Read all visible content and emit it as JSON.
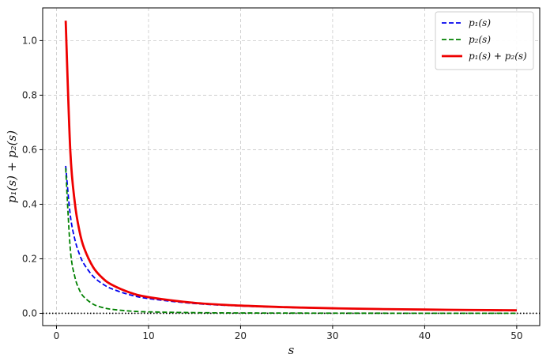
{
  "chart_data": {
    "type": "line",
    "title": "",
    "xlabel": "s",
    "ylabel": "p₁(s) + p₂(s)",
    "xlim": [
      -1.5,
      52.5
    ],
    "ylim": [
      -0.045,
      1.12
    ],
    "xticks": [
      0,
      10,
      20,
      30,
      40,
      50
    ],
    "yticks": [
      0.0,
      0.2,
      0.4,
      0.6,
      0.8,
      1.0
    ],
    "xtick_labels": [
      "0",
      "10",
      "20",
      "30",
      "40",
      "50"
    ],
    "ytick_labels": [
      "0.0",
      "0.2",
      "0.4",
      "0.6",
      "0.8",
      "1.0"
    ],
    "grid": true,
    "legend_position": "top-right",
    "reference_line": {
      "y": 0,
      "style": "dotted",
      "color": "#000000"
    },
    "series": [
      {
        "name": "p₁(s)",
        "color": "#0000ee",
        "style": "dashed",
        "x": [
          1,
          1.5,
          2,
          2.5,
          3,
          4,
          5,
          6,
          8,
          10,
          15,
          20,
          25,
          30,
          35,
          40,
          45,
          50
        ],
        "values": [
          0.5405,
          0.3604,
          0.2703,
          0.2162,
          0.1802,
          0.1351,
          0.1081,
          0.0901,
          0.0676,
          0.0541,
          0.036,
          0.027,
          0.0216,
          0.018,
          0.0154,
          0.0135,
          0.012,
          0.0108
        ]
      },
      {
        "name": "p₂(s)",
        "color": "#008000",
        "style": "dashed",
        "x": [
          1,
          1.5,
          2,
          2.5,
          3,
          4,
          5,
          6,
          8,
          10,
          15,
          20,
          25,
          30,
          35,
          40,
          45,
          50
        ],
        "values": [
          0.5325,
          0.2367,
          0.1331,
          0.0852,
          0.0592,
          0.0333,
          0.0213,
          0.0148,
          0.0083,
          0.0053,
          0.0024,
          0.0013,
          0.0009,
          0.0006,
          0.0004,
          0.0003,
          0.0003,
          0.0002
        ]
      },
      {
        "name": "p₁(s) + p₂(s)",
        "color": "#ee0000",
        "style": "solid",
        "x": [
          1,
          1.5,
          2,
          2.5,
          3,
          4,
          5,
          6,
          8,
          10,
          15,
          20,
          25,
          30,
          35,
          40,
          45,
          50
        ],
        "values": [
          1.073,
          0.5971,
          0.4034,
          0.3014,
          0.2394,
          0.1684,
          0.1294,
          0.1049,
          0.0759,
          0.0594,
          0.0384,
          0.0283,
          0.0225,
          0.0186,
          0.0158,
          0.0138,
          0.0123,
          0.011
        ]
      }
    ]
  }
}
